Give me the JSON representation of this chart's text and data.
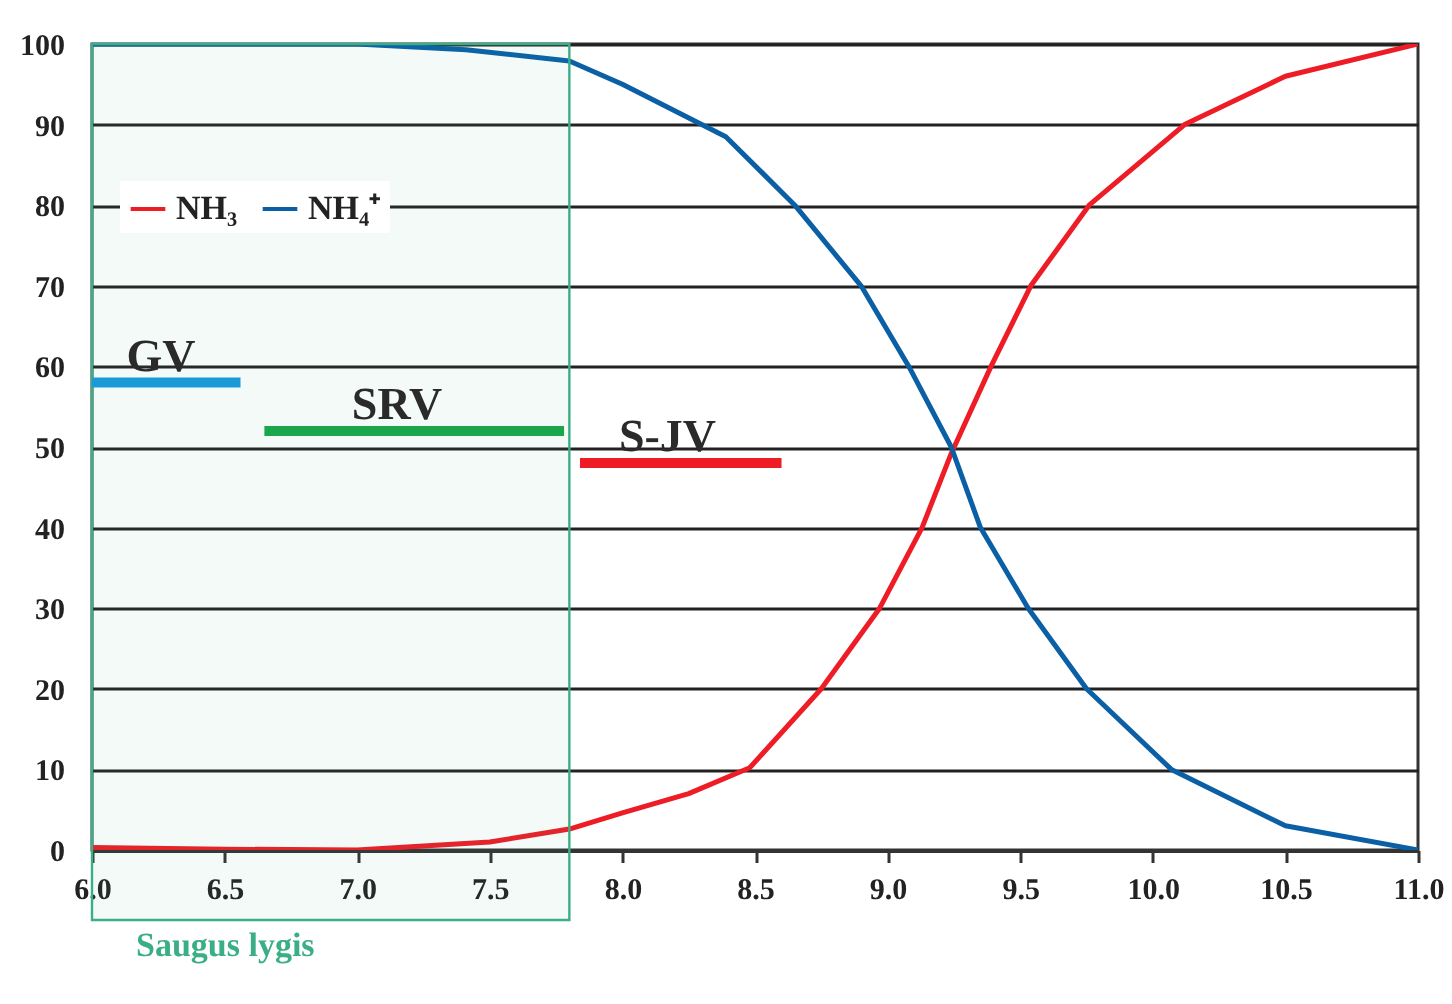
{
  "chart_data": {
    "type": "line",
    "xlim": [
      6.0,
      11.0
    ],
    "xticks": [
      {
        "value": 6,
        "label": "6.0"
      },
      6.5,
      {
        "value": 7,
        "label": "7.0"
      },
      7.5,
      {
        "value": 8,
        "label": "8.0"
      },
      8.5,
      {
        "value": 9,
        "label": "9.0"
      },
      9.5,
      {
        "value": 10,
        "label": "10.0"
      },
      10.5,
      {
        "value": 11,
        "label": "11.0"
      }
    ],
    "ylim": [
      0,
      100
    ],
    "yticks": [
      0,
      10,
      20,
      30,
      40,
      50,
      60,
      70,
      80,
      90,
      100
    ],
    "grid": "y",
    "legend": "top left",
    "series": [
      {
        "name": "NH₃",
        "color": "#ee1c25",
        "x": [
          6.0,
          6.5,
          7.0,
          7.5,
          7.8,
          8.0,
          8.25,
          8.48,
          8.75,
          8.97,
          9.13,
          9.24,
          9.39,
          9.54,
          9.76,
          10.12,
          10.5,
          11.0
        ],
        "values": [
          0.3,
          0.1,
          0,
          1.0,
          2.6,
          4.6,
          7,
          10.2,
          20,
          30,
          40,
          49.2,
          60,
          70,
          80,
          90,
          96,
          100
        ]
      },
      {
        "name": "NH₄⁺",
        "color": "#0b5fa5",
        "x": [
          6.0,
          6.5,
          7.0,
          7.41,
          7.8,
          8.0,
          8.39,
          8.65,
          8.9,
          9.08,
          9.24,
          9.35,
          9.53,
          9.75,
          10.07,
          10.5,
          11.0
        ],
        "values": [
          100,
          100,
          100,
          99.3,
          97.9,
          95,
          88.5,
          80,
          70,
          60,
          50,
          40,
          30,
          20,
          10,
          3,
          0
        ]
      },
      {
        "color": "#1a9ad6",
        "x": [
          6.0,
          6.56
        ],
        "values": [
          58,
          58
        ]
      },
      {
        "color": "#1aa64a",
        "x": [
          6.65,
          7.78
        ],
        "values": [
          52,
          52
        ]
      },
      {
        "color": "#ee1c25",
        "x": [
          7.84,
          8.6
        ],
        "values": [
          48,
          48
        ]
      }
    ],
    "bands": [
      {
        "axis": "x",
        "from": 6.0,
        "to": 7.8,
        "label": "Saugus lygis",
        "color": "#3aaf85"
      }
    ],
    "annotations": [
      {
        "text": "GV",
        "x": 6.26,
        "y": 58
      },
      {
        "text": "SRV",
        "x": 7.15,
        "y": 52
      },
      {
        "text": "S-JV",
        "x": 8.17,
        "y": 48
      }
    ]
  }
}
